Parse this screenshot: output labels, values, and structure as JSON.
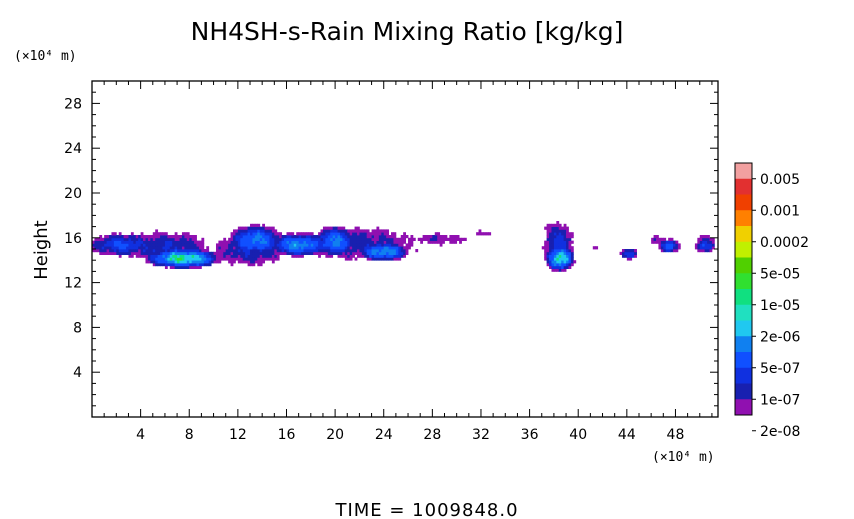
{
  "chart_data": {
    "type": "heatmap",
    "title": "NH4SH-s-Rain Mixing Ratio [kg/kg]",
    "ylabel": "Height",
    "x_unit_label": "(×10⁴ m)",
    "y_unit_label": "(×10⁴ m)",
    "xlim": [
      0,
      51.5
    ],
    "ylim": [
      0,
      30
    ],
    "x_ticks": [
      4,
      8,
      12,
      16,
      20,
      24,
      28,
      32,
      36,
      40,
      44,
      48
    ],
    "y_ticks": [
      4,
      8,
      12,
      16,
      20,
      24,
      28
    ],
    "footer": "TIME = 1009848.0",
    "colorbar": {
      "labels": [
        "0.005",
        "0.001",
        "0.0002",
        "5e-05",
        "1e-05",
        "2e-06",
        "5e-07",
        "1e-07",
        "2e-08"
      ],
      "colors_top_to_bottom": [
        "#f2a0a0",
        "#e23030",
        "#f04000",
        "#ff8000",
        "#f0d000",
        "#c0f000",
        "#50d000",
        "#30e030",
        "#10e080",
        "#20e0c0",
        "#20c8f0",
        "#1080f0",
        "#1050ff",
        "#1030e0",
        "#1820b0",
        "#9010b0"
      ]
    },
    "cloud_field": {
      "value_unit": "log10 kg/kg",
      "regions": [
        {
          "xmin": 0,
          "xmax": 34,
          "ymin": 13.0,
          "ymax": 17.5
        },
        {
          "xmin": 36.5,
          "xmax": 40.5,
          "ymin": 13.0,
          "ymax": 18.0
        },
        {
          "xmin": 40,
          "xmax": 45,
          "ymin": 14.0,
          "ymax": 15.5
        },
        {
          "xmin": 45,
          "xmax": 51.5,
          "ymin": 14.5,
          "ymax": 16.5
        }
      ],
      "blobs": [
        {
          "x": 2.5,
          "y": 15.4,
          "rx": 2.8,
          "ry": 1.0,
          "v": -5.6
        },
        {
          "x": 7.5,
          "y": 14.2,
          "rx": 2.4,
          "ry": 0.7,
          "v": -3.8
        },
        {
          "x": 6.0,
          "y": 15.2,
          "rx": 4.5,
          "ry": 1.6,
          "v": -6.3
        },
        {
          "x": 13.5,
          "y": 15.8,
          "rx": 2.0,
          "ry": 1.2,
          "v": -4.9
        },
        {
          "x": 17.0,
          "y": 15.4,
          "rx": 2.3,
          "ry": 0.9,
          "v": -4.7
        },
        {
          "x": 13.0,
          "y": 15.0,
          "rx": 3.5,
          "ry": 1.8,
          "v": -6.3
        },
        {
          "x": 20.0,
          "y": 15.7,
          "rx": 1.6,
          "ry": 1.2,
          "v": -4.9
        },
        {
          "x": 24.0,
          "y": 14.8,
          "rx": 1.8,
          "ry": 0.7,
          "v": -4.5
        },
        {
          "x": 22.0,
          "y": 15.5,
          "rx": 6.0,
          "ry": 1.9,
          "v": -6.6
        },
        {
          "x": 28.5,
          "y": 15.9,
          "rx": 3.5,
          "ry": 0.8,
          "v": -7.1
        },
        {
          "x": 32.0,
          "y": 16.4,
          "rx": 2.0,
          "ry": 0.4,
          "v": -7.4
        },
        {
          "x": 38.5,
          "y": 14.2,
          "rx": 0.9,
          "ry": 0.9,
          "v": -3.8
        },
        {
          "x": 38.4,
          "y": 15.3,
          "rx": 1.4,
          "ry": 2.4,
          "v": -6.0
        },
        {
          "x": 38.0,
          "y": 16.8,
          "rx": 1.2,
          "ry": 0.9,
          "v": -7.0
        },
        {
          "x": 41.5,
          "y": 15.2,
          "rx": 1.6,
          "ry": 0.4,
          "v": -7.6
        },
        {
          "x": 44.2,
          "y": 14.6,
          "rx": 0.7,
          "ry": 0.5,
          "v": -5.5
        },
        {
          "x": 47.5,
          "y": 15.3,
          "rx": 0.8,
          "ry": 0.6,
          "v": -5.2
        },
        {
          "x": 46.5,
          "y": 15.8,
          "rx": 1.2,
          "ry": 0.6,
          "v": -7.1
        },
        {
          "x": 50.4,
          "y": 15.3,
          "rx": 0.9,
          "ry": 0.6,
          "v": -5.6
        },
        {
          "x": 50.5,
          "y": 15.8,
          "rx": 1.3,
          "ry": 0.7,
          "v": -7.0
        }
      ]
    }
  }
}
